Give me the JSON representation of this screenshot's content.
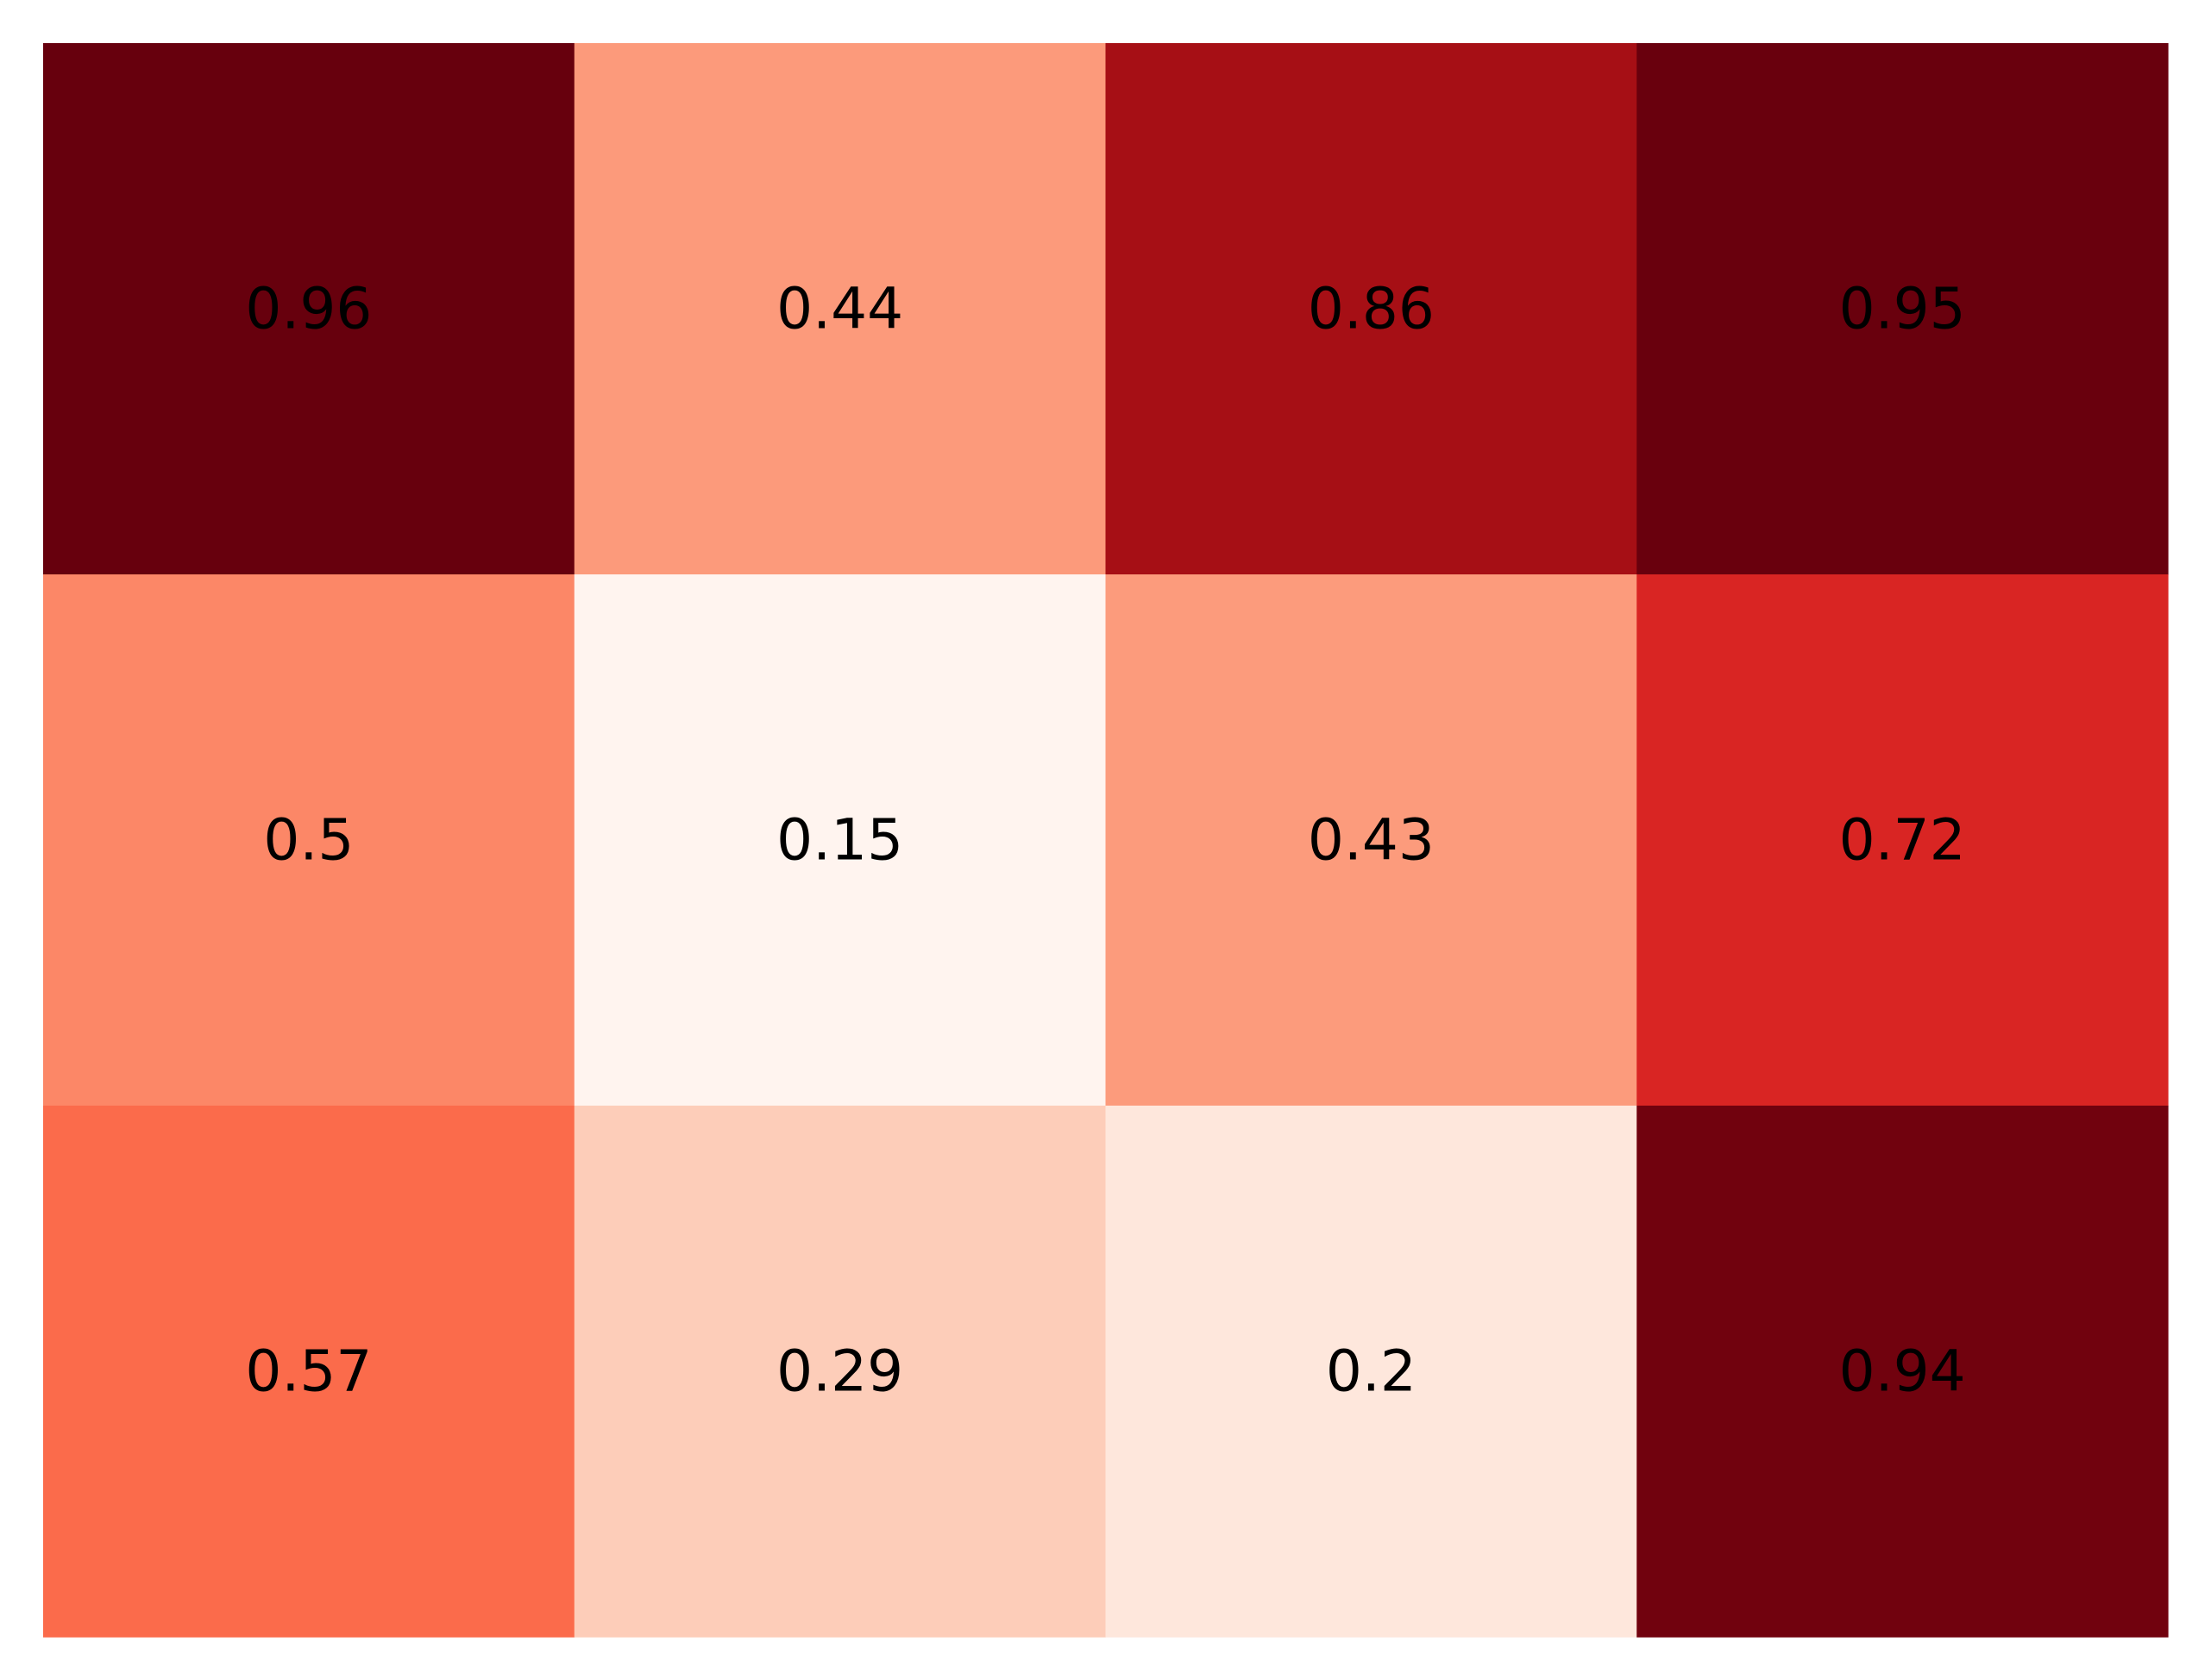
{
  "chart_data": {
    "type": "heatmap",
    "rows": 3,
    "columns": 4,
    "values": [
      [
        0.96,
        0.44,
        0.86,
        0.95
      ],
      [
        0.5,
        0.15,
        0.43,
        0.72
      ],
      [
        0.57,
        0.29,
        0.2,
        0.94
      ]
    ],
    "labels": [
      [
        "0.96",
        "0.44",
        "0.86",
        "0.95"
      ],
      [
        "0.5",
        "0.15",
        "0.43",
        "0.72"
      ],
      [
        "0.57",
        "0.29",
        "0.2",
        "0.94"
      ]
    ],
    "colormap": "Reds",
    "colors": [
      [
        "#67000d",
        "#fc9a7b",
        "#a60f15",
        "#69000d"
      ],
      [
        "#fc8767",
        "#fff4ef",
        "#fc9b7c",
        "#d92523"
      ],
      [
        "#fb6b4b",
        "#fdcdb9",
        "#fee7dc",
        "#71020e"
      ]
    ],
    "title": "",
    "xlabel": "",
    "ylabel": "",
    "axes_visible": false,
    "grid": false,
    "legend": false
  }
}
